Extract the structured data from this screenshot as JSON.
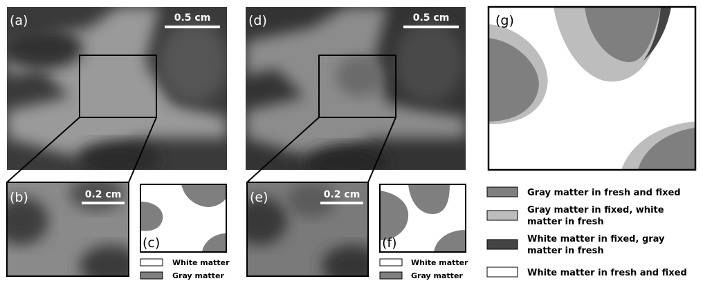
{
  "panels": {
    "a": {
      "label": "(a)",
      "scale_bar": "0.5 cm"
    },
    "b": {
      "label": "(b)",
      "scale_bar": "0.2 cm"
    },
    "c": {
      "label": "(c)"
    },
    "d": {
      "label": "(d)",
      "scale_bar": "0.5 cm"
    },
    "e": {
      "label": "(e)",
      "scale_bar": "0.2 cm"
    },
    "f": {
      "label": "(f)"
    },
    "g": {
      "label": "(g)"
    }
  },
  "legend_c": [
    "White matter",
    "Gray matter"
  ],
  "legend_f": [
    "White matter",
    "Gray matter"
  ],
  "legend_g": [
    "Gray matter in fresh and fixed",
    "Gray matter in fixed, white matter in fresh",
    "White matter in fixed, gray matter in fresh",
    "White matter in fresh and fixed"
  ]
}
